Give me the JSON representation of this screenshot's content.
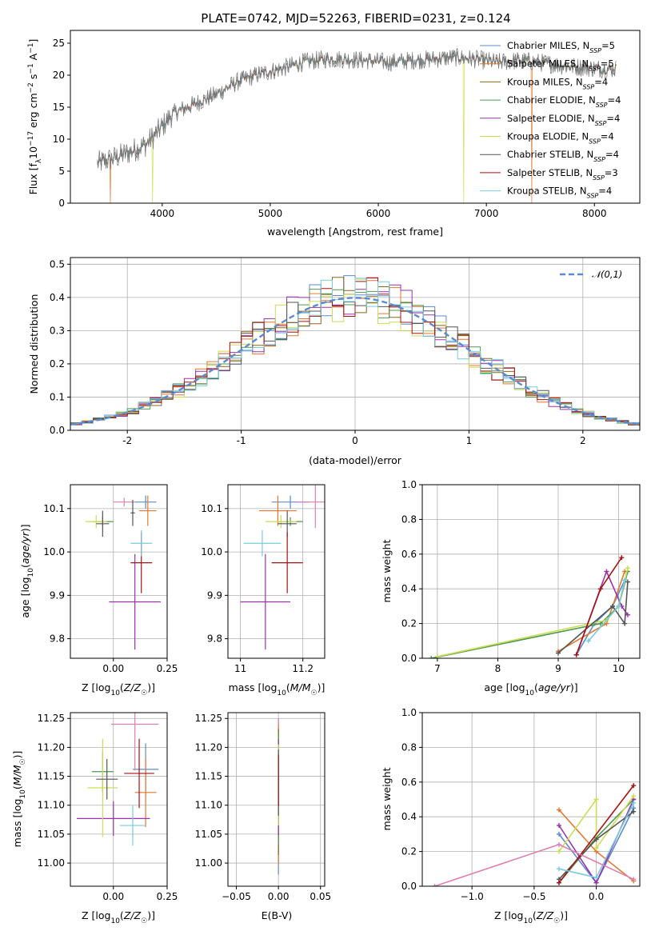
{
  "title": "PLATE=0742, MJD=52263, FIBERID=0231, z=0.124",
  "series": [
    {
      "name": "Chabrier MILES, N_SSP=5",
      "color": "#5b8bd0"
    },
    {
      "name": "Salpeter MILES, N_SSP=5",
      "color": "#e6772e"
    },
    {
      "name": "Kroupa MILES, N_SSP=4",
      "color": "#8c6418"
    },
    {
      "name": "Chabrier ELODIE, N_SSP=4",
      "color": "#4f9a4f"
    },
    {
      "name": "Salpeter ELODIE, N_SSP=4",
      "color": "#9933aa"
    },
    {
      "name": "Kroupa ELODIE, N_SSP=4",
      "color": "#ccdd55"
    },
    {
      "name": "Chabrier STELIB, N_SSP=4",
      "color": "#555555"
    },
    {
      "name": "Salpeter STELIB, N_SSP=3",
      "color": "#aa1111"
    },
    {
      "name": "Kroupa STELIB, N_SSP=4",
      "color": "#77ccdd"
    }
  ],
  "data_color": "#777777",
  "pink_color": "#e07fb0",
  "chart_data": [
    {
      "type": "line",
      "xlabel": "wavelength [Angstrom, rest frame]",
      "ylabel": "Flux [f_λ 10^-17 erg cm^-2 s^-1 A^-1]",
      "xlim": [
        3150,
        8420
      ],
      "ylim": [
        0,
        27
      ],
      "xticks": [
        4000,
        5000,
        6000,
        7000,
        8000
      ],
      "yticks": [
        0,
        5,
        10,
        15,
        20,
        25
      ],
      "legend": "top-right",
      "spectrum_envelope": [
        [
          3400,
          6.2
        ],
        [
          3550,
          7.0
        ],
        [
          3700,
          8.0
        ],
        [
          3850,
          9.2
        ],
        [
          3950,
          11.0
        ],
        [
          4100,
          14.0
        ],
        [
          4300,
          15.5
        ],
        [
          4500,
          17.0
        ],
        [
          4700,
          19.0
        ],
        [
          4900,
          20.2
        ],
        [
          5100,
          21.0
        ],
        [
          5300,
          22.0
        ],
        [
          5500,
          22.5
        ],
        [
          5700,
          22.5
        ],
        [
          5900,
          22.3
        ],
        [
          6100,
          22.0
        ],
        [
          6300,
          22.3
        ],
        [
          6500,
          22.5
        ],
        [
          6700,
          22.8
        ],
        [
          6900,
          22.5
        ],
        [
          7100,
          22.0
        ],
        [
          7300,
          22.3
        ],
        [
          7500,
          22.0
        ],
        [
          7700,
          21.5
        ],
        [
          7900,
          21.2
        ],
        [
          8100,
          21.0
        ],
        [
          8200,
          21.0
        ]
      ],
      "dropouts": [
        [
          3520,
          "Salpeter MILES, N_SSP=5"
        ],
        [
          3910,
          "Kroupa ELODIE, N_SSP=4"
        ],
        [
          6790,
          "Kroupa ELODIE, N_SSP=4"
        ],
        [
          7420,
          "Salpeter MILES, N_SSP=5"
        ]
      ]
    },
    {
      "type": "histogram",
      "xlabel": "(data-model)/error",
      "ylabel": "Normed distribution",
      "xlim": [
        -2.5,
        2.5
      ],
      "ylim": [
        0,
        0.52
      ],
      "xticks": [
        -2,
        -1,
        0,
        1,
        2
      ],
      "yticks": [
        0.0,
        0.1,
        0.2,
        0.3,
        0.4,
        0.5
      ],
      "bin_width": 0.1,
      "reference_curve": {
        "name": "𝒩(0,1)",
        "color": "#5b8bd0",
        "dashed": true
      },
      "legend": "top-right"
    },
    {
      "type": "scatter",
      "xlabel": "Z [log10(Z/Z☉)]",
      "ylabel": "age  [log10(age/yr)]",
      "xlim": [
        -0.2,
        0.25
      ],
      "ylim": [
        9.755,
        10.155
      ],
      "xticks": [
        0.0,
        0.25
      ],
      "xtick_labels": [
        "0.00",
        "0.25"
      ],
      "yticks": [
        9.8,
        9.9,
        10.0,
        10.1
      ],
      "points": [
        {
          "series": 0,
          "x": 0.15,
          "xe": 0.05,
          "y": 10.115,
          "ye": 0.015
        },
        {
          "series": 1,
          "x": 0.16,
          "xe": 0.04,
          "y": 10.095,
          "ye": 0.035
        },
        {
          "series": 3,
          "x": -0.05,
          "xe": 0.05,
          "y": 10.07,
          "ye": 0.01
        },
        {
          "series": 4,
          "x": 0.1,
          "xe": 0.12,
          "y": 9.885,
          "ye": 0.11
        },
        {
          "series": 5,
          "x": -0.08,
          "xe": 0.05,
          "y": 10.07,
          "ye": 0.015
        },
        {
          "series": 6,
          "x": -0.05,
          "xe": 0.03,
          "y": 10.065,
          "ye": 0.03
        },
        {
          "series": 7,
          "x": 0.13,
          "xe": 0.05,
          "y": 9.975,
          "ye": 0.07
        },
        {
          "series": 8,
          "x": 0.13,
          "xe": 0.05,
          "y": 10.02,
          "ye": 0.03
        },
        {
          "series": "pink",
          "x": 0.05,
          "xe": 0.05,
          "y": 10.115,
          "ye": 0.01
        },
        {
          "series": 6,
          "x": 0.09,
          "xe": 0.01,
          "y": 10.09,
          "ye": 0.03
        }
      ]
    },
    {
      "type": "scatter",
      "xlabel": "mass [log10(M/M☉)]",
      "ylabel": "",
      "xlim": [
        10.96,
        11.27
      ],
      "ylim": [
        9.755,
        10.155
      ],
      "xticks": [
        11.0,
        11.2
      ],
      "yticks": [
        9.8,
        9.9,
        10.0,
        10.1
      ],
      "points": [
        {
          "series": 0,
          "x": 11.16,
          "xe": 0.06,
          "y": 10.115,
          "ye": 0.015
        },
        {
          "series": 1,
          "x": 11.12,
          "xe": 0.06,
          "y": 10.095,
          "ye": 0.035
        },
        {
          "series": 3,
          "x": 11.16,
          "xe": 0.04,
          "y": 10.07,
          "ye": 0.01
        },
        {
          "series": 4,
          "x": 11.08,
          "xe": 0.08,
          "y": 9.885,
          "ye": 0.11
        },
        {
          "series": 5,
          "x": 11.13,
          "xe": 0.05,
          "y": 10.07,
          "ye": 0.015
        },
        {
          "series": 6,
          "x": 11.15,
          "xe": 0.03,
          "y": 10.065,
          "ye": 0.03
        },
        {
          "series": 7,
          "x": 11.15,
          "xe": 0.05,
          "y": 9.975,
          "ye": 0.07
        },
        {
          "series": 8,
          "x": 11.07,
          "xe": 0.06,
          "y": 10.02,
          "ye": 0.03
        },
        {
          "series": "pink",
          "x": 11.24,
          "xe": 0.06,
          "y": 10.115,
          "ye": 0.06
        }
      ]
    },
    {
      "type": "line",
      "xlabel": "age  [log10(age/yr)]",
      "ylabel": "mass weight",
      "xlim": [
        6.75,
        10.35
      ],
      "ylim": [
        0,
        1.0
      ],
      "xticks": [
        7,
        8,
        9,
        10
      ],
      "yticks": [
        0.0,
        0.2,
        0.4,
        0.6,
        0.8,
        1.0
      ],
      "lines": [
        {
          "series": 0,
          "pts": [
            [
              9.3,
              0.02
            ],
            [
              9.6,
              0.2
            ],
            [
              9.9,
              0.3
            ],
            [
              10.1,
              0.45
            ]
          ]
        },
        {
          "series": 1,
          "pts": [
            [
              9.0,
              0.04
            ],
            [
              9.8,
              0.2
            ],
            [
              10.1,
              0.5
            ]
          ]
        },
        {
          "series": 3,
          "pts": [
            [
              6.9,
              0.0
            ],
            [
              9.7,
              0.2
            ],
            [
              10.0,
              0.3
            ],
            [
              10.15,
              0.5
            ]
          ]
        },
        {
          "series": 4,
          "pts": [
            [
              9.3,
              0.02
            ],
            [
              9.8,
              0.5
            ],
            [
              10.05,
              0.3
            ],
            [
              10.15,
              0.25
            ]
          ]
        },
        {
          "series": 5,
          "pts": [
            [
              7.0,
              0.01
            ],
            [
              9.8,
              0.22
            ],
            [
              10.0,
              0.3
            ],
            [
              10.15,
              0.52
            ]
          ]
        },
        {
          "series": 6,
          "pts": [
            [
              9.0,
              0.03
            ],
            [
              9.9,
              0.3
            ],
            [
              10.1,
              0.2
            ],
            [
              10.15,
              0.44
            ]
          ]
        },
        {
          "series": 7,
          "pts": [
            [
              9.3,
              0.02
            ],
            [
              9.7,
              0.4
            ],
            [
              10.05,
              0.58
            ]
          ]
        },
        {
          "series": 8,
          "pts": [
            [
              9.5,
              0.1
            ],
            [
              10.0,
              0.3
            ],
            [
              10.1,
              0.45
            ]
          ]
        }
      ]
    },
    {
      "type": "scatter",
      "xlabel": "Z [log10(Z/Z☉)]",
      "ylabel": "mass [log10(M/M☉)]",
      "xlim": [
        -0.2,
        0.25
      ],
      "ylim": [
        10.96,
        11.26
      ],
      "xticks": [
        0.0,
        0.25
      ],
      "xtick_labels": [
        "0.00",
        "0.25"
      ],
      "yticks": [
        11.0,
        11.05,
        11.1,
        11.15,
        11.2,
        11.25
      ],
      "points": [
        {
          "series": 0,
          "x": 0.15,
          "xe": 0.06,
          "y": 11.162,
          "ye": 0.045
        },
        {
          "series": 1,
          "x": 0.15,
          "xe": 0.05,
          "y": 11.122,
          "ye": 0.06
        },
        {
          "series": 3,
          "x": -0.05,
          "xe": 0.05,
          "y": 11.158,
          "ye": 0.035
        },
        {
          "series": 4,
          "x": 0.0,
          "xe": 0.17,
          "y": 11.077,
          "ye": 0.03
        },
        {
          "series": 5,
          "x": -0.05,
          "xe": 0.07,
          "y": 11.13,
          "ye": 0.085
        },
        {
          "series": 6,
          "x": -0.03,
          "xe": 0.05,
          "y": 11.145,
          "ye": 0.035
        },
        {
          "series": 7,
          "x": 0.12,
          "xe": 0.07,
          "y": 11.155,
          "ye": 0.06
        },
        {
          "series": 8,
          "x": 0.09,
          "xe": 0.06,
          "y": 11.065,
          "ye": 0.035
        },
        {
          "series": "pink",
          "x": 0.1,
          "xe": 0.11,
          "y": 11.24,
          "ye": 0.08
        }
      ]
    },
    {
      "type": "scatter",
      "xlabel": "E(B-V)",
      "ylabel": "",
      "xlim": [
        -0.06,
        0.055
      ],
      "ylim": [
        10.96,
        11.26
      ],
      "xticks": [
        -0.05,
        0.0,
        0.05
      ],
      "yticks": [
        11.0,
        11.05,
        11.1,
        11.15,
        11.2,
        11.25
      ],
      "ebv_values": [
        0.0,
        0.0,
        0.0,
        0.0,
        0.0,
        0.0,
        0.0,
        0.0
      ],
      "ebv_range": [
        10.98,
        11.25
      ]
    },
    {
      "type": "line",
      "xlabel": "Z [log10(Z/Z☉)]",
      "ylabel": "mass weight",
      "xlim": [
        -1.4,
        0.35
      ],
      "ylim": [
        0,
        1.0
      ],
      "xticks": [
        -1.0,
        -0.5,
        0.0
      ],
      "yticks": [
        0.0,
        0.2,
        0.4,
        0.6,
        0.8,
        1.0
      ],
      "lines": [
        {
          "series": 0,
          "pts": [
            [
              -0.3,
              0.3
            ],
            [
              0.0,
              0.02
            ],
            [
              0.3,
              0.45
            ]
          ]
        },
        {
          "series": 1,
          "pts": [
            [
              -0.3,
              0.44
            ],
            [
              0.0,
              0.2
            ],
            [
              0.3,
              0.03
            ]
          ]
        },
        {
          "series": 3,
          "pts": [
            [
              -0.3,
              0.02
            ],
            [
              0.0,
              0.28
            ],
            [
              0.3,
              0.5
            ]
          ]
        },
        {
          "series": 4,
          "pts": [
            [
              -0.3,
              0.35
            ],
            [
              0.0,
              0.02
            ],
            [
              0.3,
              0.5
            ]
          ]
        },
        {
          "series": 5,
          "pts": [
            [
              -0.3,
              0.2
            ],
            [
              0.0,
              0.5
            ],
            [
              0.0,
              0.22
            ],
            [
              0.3,
              0.52
            ]
          ]
        },
        {
          "series": 6,
          "pts": [
            [
              -0.3,
              0.04
            ],
            [
              0.0,
              0.27
            ],
            [
              0.3,
              0.43
            ]
          ]
        },
        {
          "series": 7,
          "pts": [
            [
              -0.3,
              0.02
            ],
            [
              0.3,
              0.58
            ]
          ]
        },
        {
          "series": 8,
          "pts": [
            [
              -0.3,
              0.1
            ],
            [
              0.0,
              0.05
            ],
            [
              0.3,
              0.48
            ]
          ]
        },
        {
          "series": "pink",
          "pts": [
            [
              -1.3,
              0.0
            ],
            [
              -0.3,
              0.24
            ],
            [
              0.3,
              0.04
            ]
          ]
        }
      ]
    }
  ]
}
